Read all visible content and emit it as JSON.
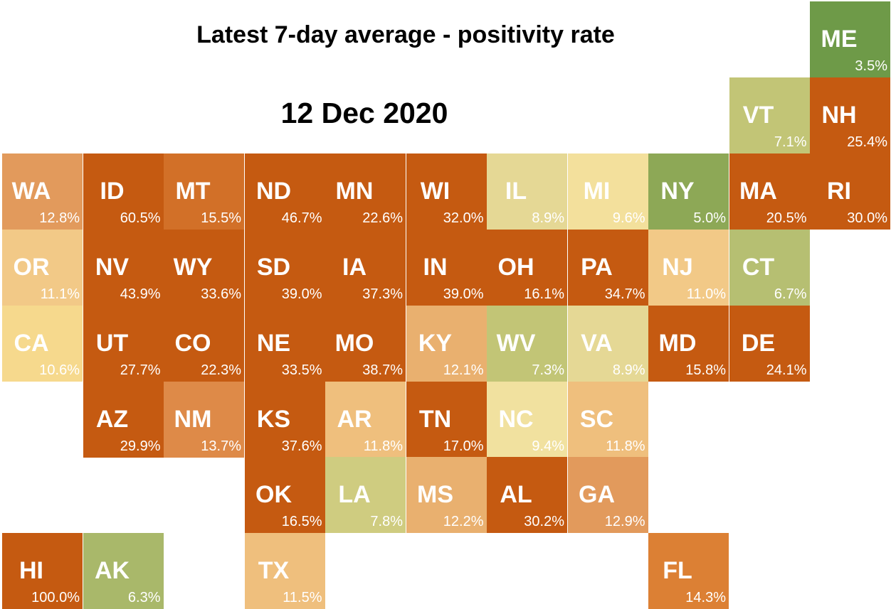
{
  "chart_data": {
    "type": "heatmap",
    "title": "Latest 7-day average - positivity rate",
    "subtitle": "12 Dec 2020",
    "states": [
      {
        "code": "ME",
        "value": "3.5%",
        "color": "#6e9a48"
      },
      {
        "code": "VT",
        "value": "7.1%",
        "color": "#c2c576"
      },
      {
        "code": "NH",
        "value": "25.4%",
        "color": "#c55a11"
      },
      {
        "code": "WA",
        "value": "12.8%",
        "color": "#e29a5c"
      },
      {
        "code": "ID",
        "value": "60.5%",
        "color": "#c55a11"
      },
      {
        "code": "MT",
        "value": "15.5%",
        "color": "#d27028"
      },
      {
        "code": "ND",
        "value": "46.7%",
        "color": "#c55a11"
      },
      {
        "code": "MN",
        "value": "22.6%",
        "color": "#c55a11"
      },
      {
        "code": "WI",
        "value": "32.0%",
        "color": "#c55a11"
      },
      {
        "code": "IL",
        "value": "8.9%",
        "color": "#e5d895"
      },
      {
        "code": "MI",
        "value": "9.6%",
        "color": "#f3e09c"
      },
      {
        "code": "NY",
        "value": "5.0%",
        "color": "#8da856"
      },
      {
        "code": "MA",
        "value": "20.5%",
        "color": "#c55a11"
      },
      {
        "code": "RI",
        "value": "30.0%",
        "color": "#c55a11"
      },
      {
        "code": "OR",
        "value": "11.1%",
        "color": "#f2c987"
      },
      {
        "code": "NV",
        "value": "43.9%",
        "color": "#c55a11"
      },
      {
        "code": "WY",
        "value": "33.6%",
        "color": "#c55a11"
      },
      {
        "code": "SD",
        "value": "39.0%",
        "color": "#c55a11"
      },
      {
        "code": "IA",
        "value": "37.3%",
        "color": "#c55a11"
      },
      {
        "code": "IN",
        "value": "39.0%",
        "color": "#c55a11"
      },
      {
        "code": "OH",
        "value": "16.1%",
        "color": "#c55a11"
      },
      {
        "code": "PA",
        "value": "34.7%",
        "color": "#c55a11"
      },
      {
        "code": "NJ",
        "value": "11.0%",
        "color": "#f2c987"
      },
      {
        "code": "CT",
        "value": "6.7%",
        "color": "#b6bf72"
      },
      {
        "code": "CA",
        "value": "10.6%",
        "color": "#f6d98d"
      },
      {
        "code": "UT",
        "value": "27.7%",
        "color": "#c55a11"
      },
      {
        "code": "CO",
        "value": "22.3%",
        "color": "#c55a11"
      },
      {
        "code": "NE",
        "value": "33.5%",
        "color": "#c55a11"
      },
      {
        "code": "MO",
        "value": "38.7%",
        "color": "#c55a11"
      },
      {
        "code": "KY",
        "value": "12.1%",
        "color": "#e9b06f"
      },
      {
        "code": "WV",
        "value": "7.3%",
        "color": "#c2c576"
      },
      {
        "code": "VA",
        "value": "8.9%",
        "color": "#e5d895"
      },
      {
        "code": "MD",
        "value": "15.8%",
        "color": "#c55a11"
      },
      {
        "code": "DE",
        "value": "24.1%",
        "color": "#c55a11"
      },
      {
        "code": "AZ",
        "value": "29.9%",
        "color": "#c55a11"
      },
      {
        "code": "NM",
        "value": "13.7%",
        "color": "#de8a48"
      },
      {
        "code": "KS",
        "value": "37.6%",
        "color": "#c55a11"
      },
      {
        "code": "AR",
        "value": "11.8%",
        "color": "#efbf7d"
      },
      {
        "code": "TN",
        "value": "17.0%",
        "color": "#c55a11"
      },
      {
        "code": "NC",
        "value": "9.4%",
        "color": "#f1e19f"
      },
      {
        "code": "SC",
        "value": "11.8%",
        "color": "#efbf7d"
      },
      {
        "code": "OK",
        "value": "16.5%",
        "color": "#c55a11"
      },
      {
        "code": "LA",
        "value": "7.8%",
        "color": "#cfcc80"
      },
      {
        "code": "MS",
        "value": "12.2%",
        "color": "#e9b06f"
      },
      {
        "code": "AL",
        "value": "30.2%",
        "color": "#c55a11"
      },
      {
        "code": "GA",
        "value": "12.9%",
        "color": "#e29a5c"
      },
      {
        "code": "HI",
        "value": "100.0%",
        "color": "#c55a11"
      },
      {
        "code": "AK",
        "value": "6.3%",
        "color": "#a9b86a"
      },
      {
        "code": "TX",
        "value": "11.5%",
        "color": "#efbf7d"
      },
      {
        "code": "FL",
        "value": "14.3%",
        "color": "#dc8034"
      }
    ]
  }
}
